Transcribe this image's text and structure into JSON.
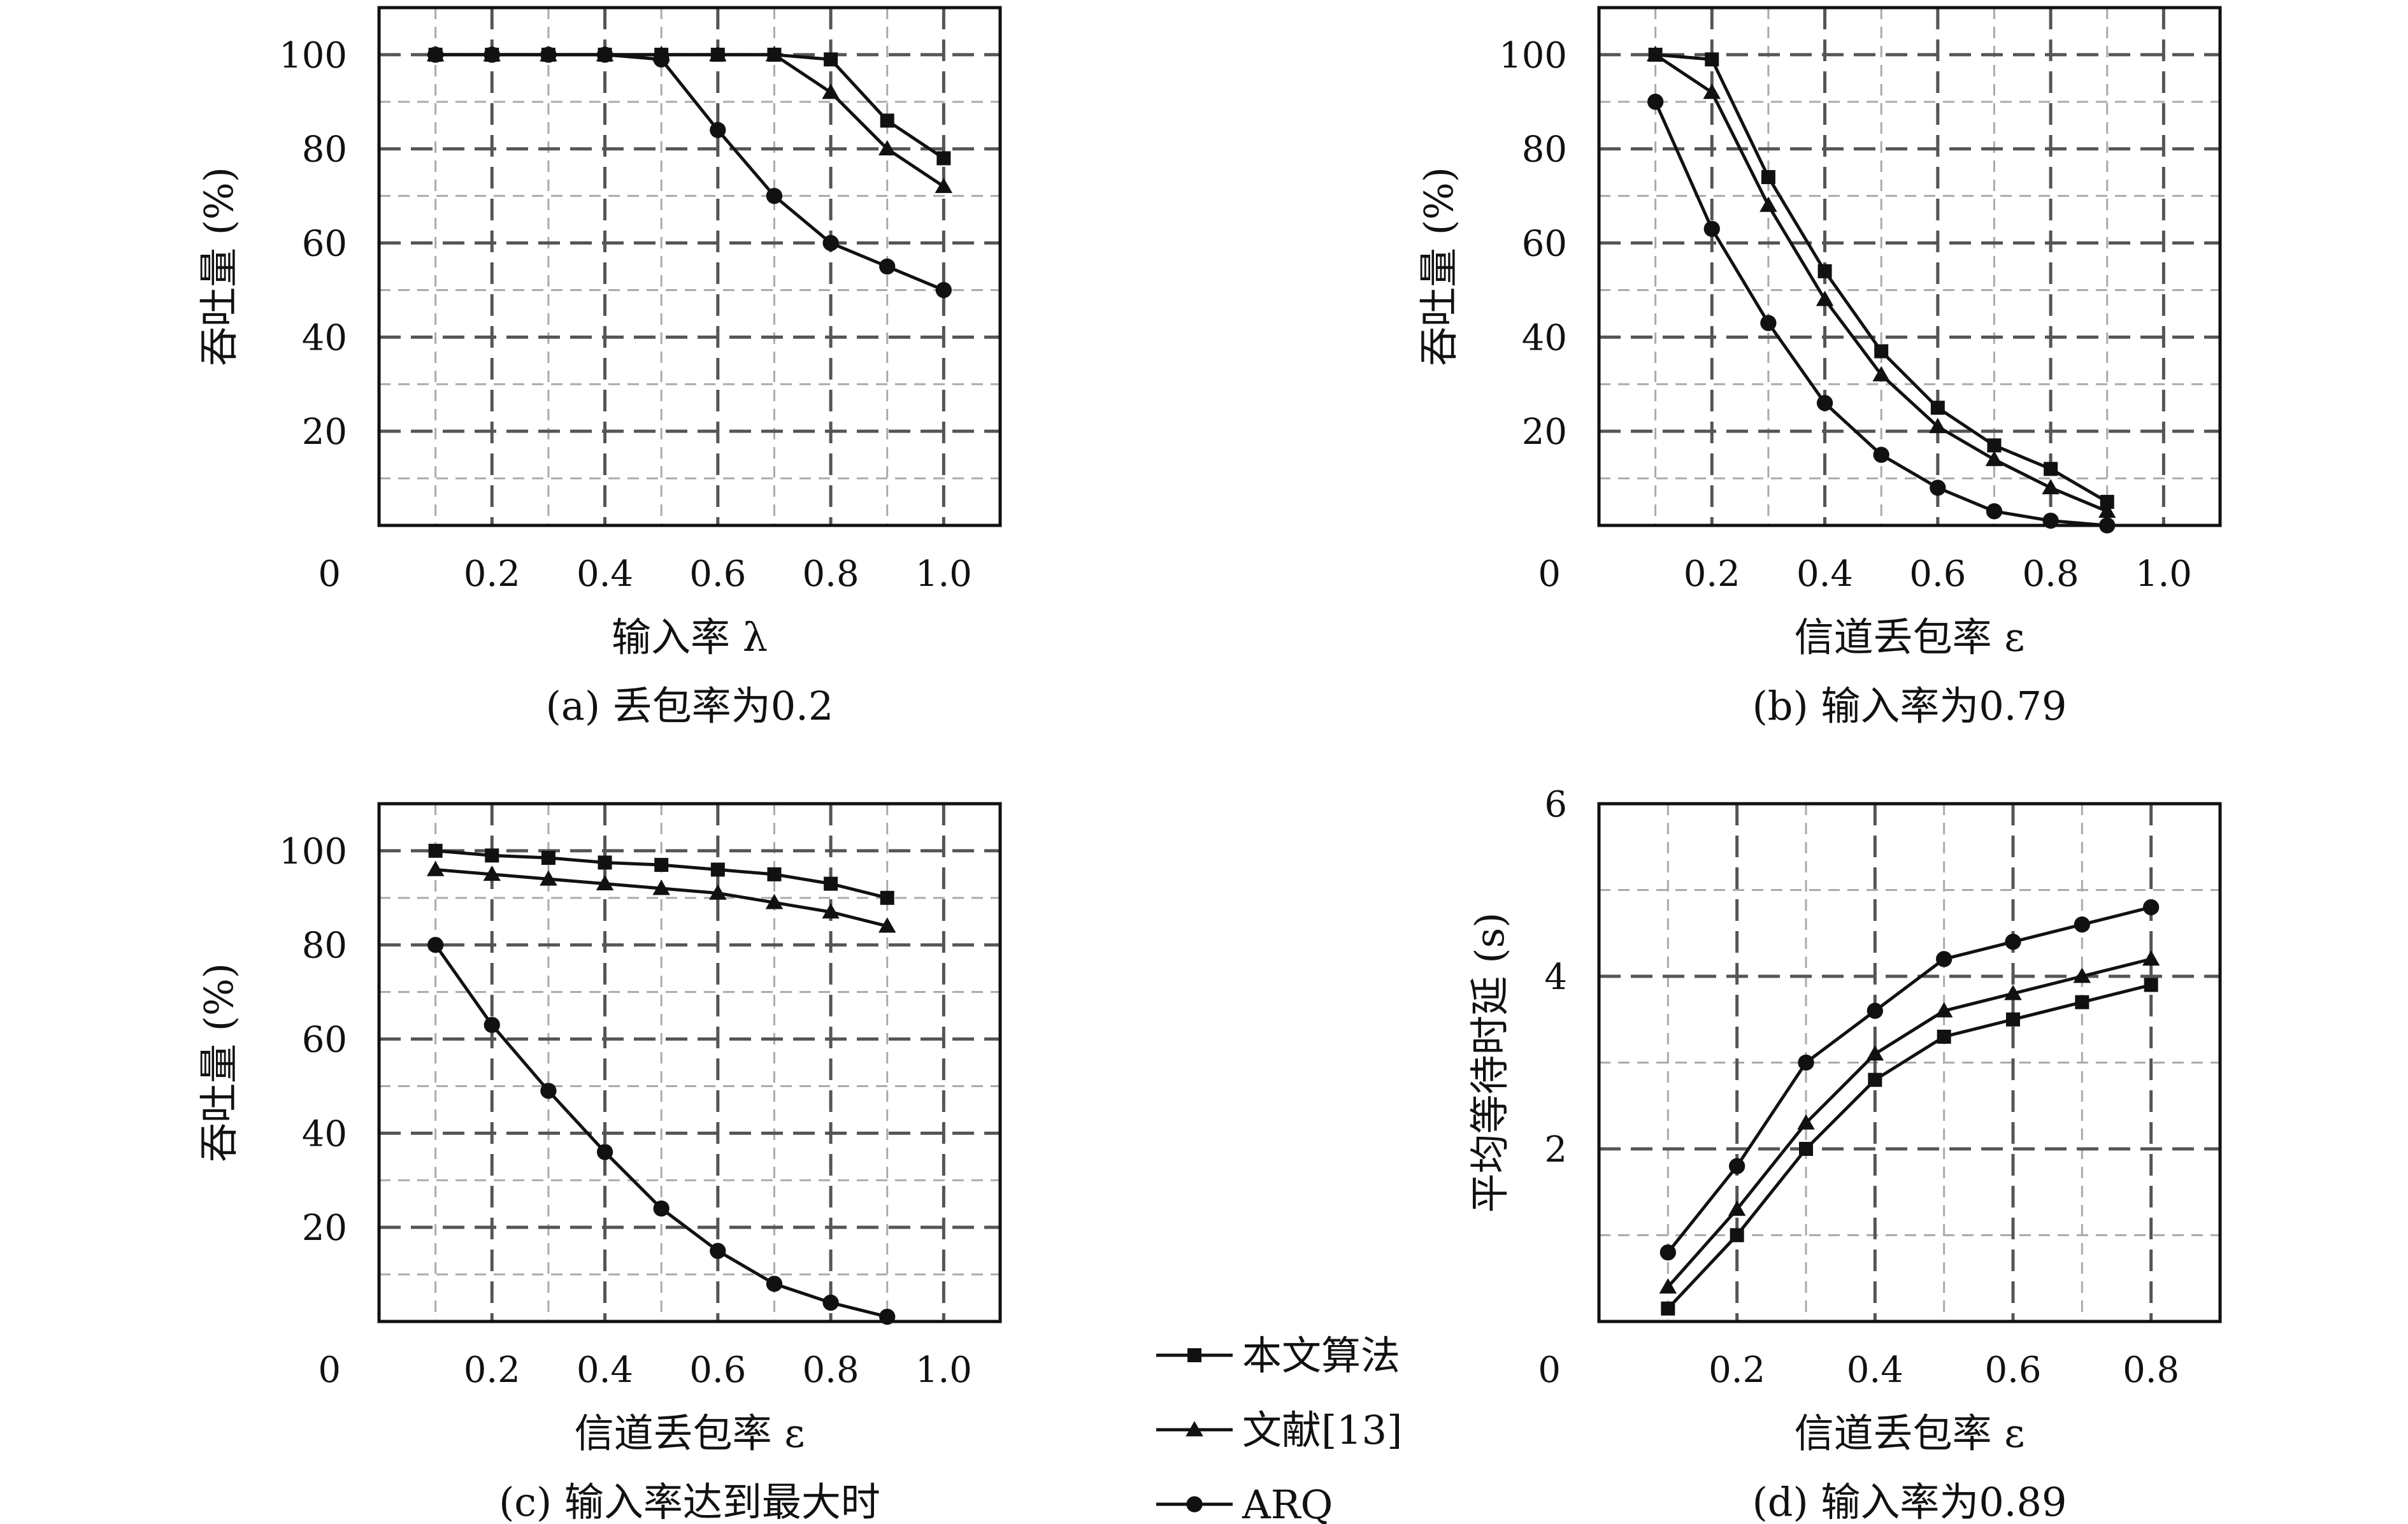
{
  "chart_data": [
    {
      "type": "line",
      "caption": "(a) 丢包率为0.2",
      "xlabel": "输入率 λ",
      "ylabel": "吞吐量 (%)",
      "xlim": [
        0,
        1.1
      ],
      "ylim": [
        0,
        110
      ],
      "xticks": [
        0.2,
        0.4,
        0.6,
        0.8,
        1.0
      ],
      "xtick_labels": [
        "0.2",
        "0.4",
        "0.6",
        "0.8",
        "1.0"
      ],
      "yticks": [
        20,
        40,
        60,
        80,
        100
      ],
      "ytick_labels": [
        "20",
        "40",
        "60",
        "80",
        "100"
      ],
      "origin_label": "0",
      "x": [
        0.1,
        0.2,
        0.3,
        0.4,
        0.5,
        0.6,
        0.7,
        0.8,
        0.9,
        1.0
      ],
      "series": [
        {
          "name": "本文算法",
          "marker": "square",
          "values": [
            100,
            100,
            100,
            100,
            100,
            100,
            100,
            99,
            86,
            78
          ]
        },
        {
          "name": "文献[13]",
          "marker": "triangle",
          "values": [
            100,
            100,
            100,
            100,
            100,
            100,
            100,
            92,
            80,
            72
          ]
        },
        {
          "name": "ARQ",
          "marker": "circle",
          "values": [
            100,
            100,
            100,
            100,
            99,
            84,
            70,
            60,
            55,
            50
          ]
        }
      ],
      "grid": true
    },
    {
      "type": "line",
      "caption": "(b) 输入率为0.79",
      "xlabel": "信道丢包率 ε",
      "ylabel": "吞吐量 (%)",
      "xlim": [
        0,
        1.1
      ],
      "ylim": [
        0,
        110
      ],
      "xticks": [
        0.2,
        0.4,
        0.6,
        0.8,
        1.0
      ],
      "xtick_labels": [
        "0.2",
        "0.4",
        "0.6",
        "0.8",
        "1.0"
      ],
      "yticks": [
        20,
        40,
        60,
        80,
        100
      ],
      "ytick_labels": [
        "20",
        "40",
        "60",
        "80",
        "100"
      ],
      "origin_label": "0",
      "x": [
        0.1,
        0.2,
        0.3,
        0.4,
        0.5,
        0.6,
        0.7,
        0.8,
        0.9
      ],
      "series": [
        {
          "name": "本文算法",
          "marker": "square",
          "values": [
            100,
            99,
            74,
            54,
            37,
            25,
            17,
            12,
            5
          ]
        },
        {
          "name": "文献[13]",
          "marker": "triangle",
          "values": [
            100,
            92,
            68,
            48,
            32,
            21,
            14,
            8,
            3
          ]
        },
        {
          "name": "ARQ",
          "marker": "circle",
          "values": [
            90,
            63,
            43,
            26,
            15,
            8,
            3,
            1,
            0
          ]
        }
      ],
      "grid": true
    },
    {
      "type": "line",
      "caption": "(c) 输入率达到最大时",
      "xlabel": "信道丢包率 ε",
      "ylabel": "吞吐量 (%)",
      "xlim": [
        0,
        1.1
      ],
      "ylim": [
        0,
        110
      ],
      "xticks": [
        0.2,
        0.4,
        0.6,
        0.8,
        1.0
      ],
      "xtick_labels": [
        "0.2",
        "0.4",
        "0.6",
        "0.8",
        "1.0"
      ],
      "yticks": [
        20,
        40,
        60,
        80,
        100
      ],
      "ytick_labels": [
        "20",
        "40",
        "60",
        "80",
        "100"
      ],
      "origin_label": "0",
      "x": [
        0.1,
        0.2,
        0.3,
        0.4,
        0.5,
        0.6,
        0.7,
        0.8,
        0.9
      ],
      "series": [
        {
          "name": "本文算法",
          "marker": "square",
          "values": [
            100,
            99,
            98.5,
            97.5,
            97,
            96,
            95,
            93,
            90
          ]
        },
        {
          "name": "文献[13]",
          "marker": "triangle",
          "values": [
            96,
            95,
            94,
            93,
            92,
            91,
            89,
            87,
            84
          ]
        },
        {
          "name": "ARQ",
          "marker": "circle",
          "values": [
            80,
            63,
            49,
            36,
            24,
            15,
            8,
            4,
            1
          ]
        }
      ],
      "grid": true
    },
    {
      "type": "line",
      "caption": "(d) 输入率为0.89",
      "xlabel": "信道丢包率 ε",
      "ylabel": "平均等待时延 (s)",
      "xlim": [
        0,
        0.9
      ],
      "ylim": [
        0,
        6
      ],
      "xticks": [
        0.2,
        0.4,
        0.6,
        0.8
      ],
      "xtick_labels": [
        "0.2",
        "0.4",
        "0.6",
        "0.8"
      ],
      "yticks": [
        2,
        4,
        6
      ],
      "ytick_labels": [
        "2",
        "4",
        "6"
      ],
      "origin_label": "0",
      "x": [
        0.1,
        0.2,
        0.3,
        0.4,
        0.5,
        0.6,
        0.7,
        0.8
      ],
      "series": [
        {
          "name": "本文算法",
          "marker": "square",
          "values": [
            0.15,
            1.0,
            2.0,
            2.8,
            3.3,
            3.5,
            3.7,
            3.9
          ]
        },
        {
          "name": "文献[13]",
          "marker": "triangle",
          "values": [
            0.4,
            1.3,
            2.3,
            3.1,
            3.6,
            3.8,
            4.0,
            4.2
          ]
        },
        {
          "name": "ARQ",
          "marker": "circle",
          "values": [
            0.8,
            1.8,
            3.0,
            3.6,
            4.2,
            4.4,
            4.6,
            4.8
          ]
        }
      ],
      "grid": true
    }
  ],
  "legend": {
    "placement": "bottom-center",
    "entries": [
      {
        "label": "本文算法",
        "marker": "square"
      },
      {
        "label": "文献[13]",
        "marker": "triangle"
      },
      {
        "label": "ARQ",
        "marker": "circle"
      }
    ]
  },
  "colors": {
    "line": "#111111",
    "grid_major": "#555555",
    "grid_minor": "#aaaaaa",
    "frame": "#111111"
  }
}
